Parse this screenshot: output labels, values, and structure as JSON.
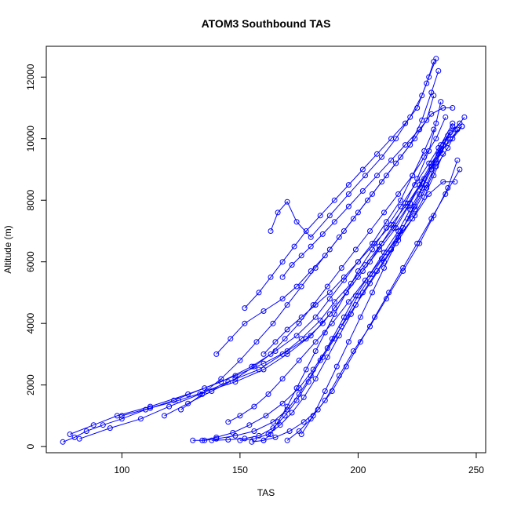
{
  "chart_data": {
    "type": "scatter",
    "title": "ATOM3 Southbound TAS",
    "xlabel": "TAS",
    "ylabel": "Altitude (m)",
    "xlim": [
      68,
      254
    ],
    "ylim": [
      -200,
      13000
    ],
    "xticks": [
      100,
      150,
      200,
      250
    ],
    "yticks": [
      0,
      2000,
      4000,
      6000,
      8000,
      10000,
      12000
    ],
    "grid": false,
    "legend": "none",
    "marker": "open-circle",
    "connected": true,
    "colors": {
      "series": "#0000ff",
      "axis": "#000000",
      "background": "#ffffff"
    },
    "series": [
      {
        "x": [
          75,
          80,
          85,
          92,
          100,
          110,
          122,
          135,
          148,
          160,
          170,
          178,
          185,
          190,
          195,
          200,
          205,
          210,
          215,
          220,
          225,
          230,
          233,
          235
        ],
        "y": [
          150,
          300,
          500,
          700,
          900,
          1200,
          1500,
          1900,
          2300,
          2700,
          3100,
          3500,
          4000,
          4500,
          5000,
          5500,
          6000,
          6600,
          7200,
          7900,
          8700,
          9600,
          10500,
          11200
        ]
      },
      {
        "x": [
          78,
          88,
          98,
          112,
          128,
          142,
          155,
          165,
          174,
          182,
          188,
          194,
          200,
          206,
          212,
          218,
          223,
          228,
          232
        ],
        "y": [
          400,
          700,
          1000,
          1300,
          1700,
          2100,
          2600,
          3100,
          3600,
          4200,
          4800,
          5400,
          6000,
          6600,
          7300,
          8000,
          8800,
          9600,
          10300
        ]
      },
      {
        "x": [
          82,
          95,
          108,
          120,
          133,
          145,
          158,
          168,
          176,
          184,
          190,
          197,
          203,
          209,
          215,
          221,
          226,
          231,
          236,
          240
        ],
        "y": [
          250,
          600,
          900,
          1300,
          1700,
          2100,
          2500,
          3000,
          3500,
          4100,
          4700,
          5300,
          5900,
          6500,
          7100,
          7800,
          8500,
          9200,
          9800,
          10400
        ]
      },
      {
        "x": [
          130,
          135,
          140,
          148,
          156,
          164,
          170,
          175,
          180,
          185,
          190,
          195,
          200,
          206,
          212,
          218,
          224,
          229,
          233,
          238,
          242
        ],
        "y": [
          200,
          200,
          250,
          350,
          500,
          800,
          1200,
          1700,
          2300,
          2900,
          3500,
          4200,
          4900,
          5600,
          6300,
          7000,
          7700,
          8400,
          9100,
          9700,
          10300
        ]
      },
      {
        "x": [
          138,
          145,
          152,
          158,
          164,
          169,
          174,
          179,
          184,
          189,
          194,
          199,
          205,
          211,
          217,
          222,
          227,
          231,
          235,
          240
        ],
        "y": [
          200,
          220,
          260,
          350,
          600,
          1000,
          1500,
          2100,
          2800,
          3500,
          4200,
          4900,
          5600,
          6300,
          7000,
          7700,
          8400,
          9100,
          9800,
          10500
        ]
      },
      {
        "x": [
          150,
          156,
          162,
          167,
          172,
          177,
          182,
          187,
          192,
          197,
          202,
          208,
          214,
          219,
          224,
          229,
          233,
          237,
          241,
          245
        ],
        "y": [
          200,
          250,
          400,
          700,
          1100,
          1600,
          2200,
          2900,
          3600,
          4300,
          5000,
          5700,
          6400,
          7100,
          7800,
          8500,
          9200,
          9900,
          10300,
          10700
        ]
      },
      {
        "x": [
          160,
          163,
          166,
          170,
          174,
          178,
          182,
          186,
          190,
          195,
          200,
          206,
          212,
          218,
          224,
          230,
          234,
          238,
          243
        ],
        "y": [
          200,
          400,
          800,
          1300,
          1900,
          2500,
          3100,
          3700,
          4300,
          5000,
          5700,
          6400,
          7100,
          7800,
          8500,
          9200,
          9700,
          10100,
          10500
        ]
      },
      {
        "x": [
          134,
          140,
          147,
          154,
          161,
          168,
          175,
          181,
          187,
          193,
          199,
          205,
          211,
          217,
          223,
          228,
          232,
          236
        ],
        "y": [
          200,
          300,
          450,
          700,
          1000,
          1400,
          1900,
          2500,
          3200,
          3900,
          4600,
          5300,
          6000,
          6700,
          7400,
          8100,
          8800,
          9500
        ]
      },
      {
        "x": [
          118,
          128,
          138,
          148,
          156,
          163,
          169,
          175,
          181,
          187,
          193,
          199,
          205,
          211,
          217,
          223,
          228,
          233,
          237
        ],
        "y": [
          1000,
          1400,
          1800,
          2200,
          2600,
          3000,
          3500,
          4000,
          4600,
          5200,
          5800,
          6400,
          7000,
          7600,
          8200,
          8800,
          9400,
          10000,
          10700
        ]
      },
      {
        "x": [
          125,
          134,
          142,
          150,
          157,
          164,
          170,
          176,
          182,
          188,
          194,
          200,
          206,
          212,
          218,
          224,
          229,
          232
        ],
        "y": [
          1200,
          1700,
          2200,
          2800,
          3400,
          4000,
          4600,
          5200,
          5800,
          6400,
          7000,
          7600,
          8200,
          8800,
          9400,
          10000,
          10600,
          11400
        ]
      },
      {
        "x": [
          140,
          146,
          152,
          160,
          168,
          174,
          180,
          186,
          192,
          198,
          204,
          210,
          216,
          222,
          227,
          231,
          234
        ],
        "y": [
          3000,
          3500,
          4000,
          4400,
          4800,
          5200,
          5700,
          6200,
          6800,
          7400,
          8000,
          8600,
          9200,
          9800,
          10600,
          11500,
          12200
        ]
      },
      {
        "x": [
          152,
          158,
          163,
          168,
          173,
          178,
          184,
          190,
          196,
          202,
          208,
          214,
          220,
          225,
          229,
          232
        ],
        "y": [
          4500,
          5000,
          5500,
          6000,
          6500,
          7000,
          7500,
          8000,
          8500,
          9000,
          9500,
          10000,
          10500,
          11000,
          11800,
          12500
        ]
      },
      {
        "x": [
          163,
          166,
          170,
          174,
          180,
          188,
          196,
          203,
          210,
          216,
          222,
          227,
          230,
          233
        ],
        "y": [
          7000,
          7600,
          7950,
          7300,
          6800,
          7500,
          8200,
          8800,
          9400,
          10000,
          10700,
          11400,
          12000,
          12600
        ]
      },
      {
        "x": [
          168,
          172,
          176,
          180,
          185,
          190,
          196,
          202,
          208,
          214,
          220,
          226,
          231,
          236,
          240
        ],
        "y": [
          5500,
          5900,
          6200,
          6500,
          6900,
          7300,
          7800,
          8300,
          8800,
          9300,
          9800,
          10300,
          10800,
          11000,
          11000
        ]
      },
      {
        "x": [
          145,
          150,
          156,
          162,
          168,
          175,
          182,
          189,
          196,
          203,
          210,
          217,
          224,
          230,
          236,
          241
        ],
        "y": [
          800,
          1000,
          1300,
          1700,
          2200,
          2800,
          3400,
          4000,
          4700,
          5400,
          6100,
          6800,
          7500,
          8200,
          8600,
          8600
        ]
      },
      {
        "x": [
          170,
          175,
          180,
          186,
          192,
          198,
          205,
          212,
          219,
          226,
          232,
          238,
          242
        ],
        "y": [
          200,
          500,
          900,
          1500,
          2300,
          3100,
          3900,
          4800,
          5700,
          6600,
          7500,
          8400,
          9300
        ]
      },
      {
        "x": [
          155,
          160,
          165,
          171,
          177,
          183,
          189,
          195,
          201,
          207,
          213,
          219,
          225,
          231,
          237,
          243
        ],
        "y": [
          150,
          200,
          300,
          500,
          800,
          1200,
          1800,
          2600,
          3400,
          4200,
          5000,
          5800,
          6600,
          7400,
          8200,
          9000
        ]
      },
      {
        "x": [
          100,
          112,
          124,
          136,
          148,
          160,
          170,
          180,
          188,
          195,
          202,
          209,
          216,
          222,
          228,
          234,
          239
        ],
        "y": [
          1000,
          1250,
          1500,
          1800,
          2100,
          2500,
          3000,
          3600,
          4300,
          5000,
          5700,
          6400,
          7100,
          7900,
          8700,
          9500,
          10200
        ]
      },
      {
        "x": [
          176,
          181,
          186,
          191,
          196,
          201,
          206,
          211,
          216,
          221,
          226,
          231,
          235,
          240,
          244
        ],
        "y": [
          400,
          1000,
          1800,
          2600,
          3400,
          4200,
          5000,
          5800,
          6600,
          7400,
          8200,
          9000,
          9600,
          10000,
          10400
        ]
      },
      {
        "x": [
          160,
          165,
          170,
          176,
          182,
          188,
          194,
          200,
          207,
          214,
          221,
          227,
          233,
          239,
          244
        ],
        "y": [
          3000,
          3400,
          3800,
          4200,
          4600,
          5000,
          5500,
          6000,
          6600,
          7200,
          7900,
          8600,
          9300,
          10000,
          10400
        ]
      }
    ]
  }
}
